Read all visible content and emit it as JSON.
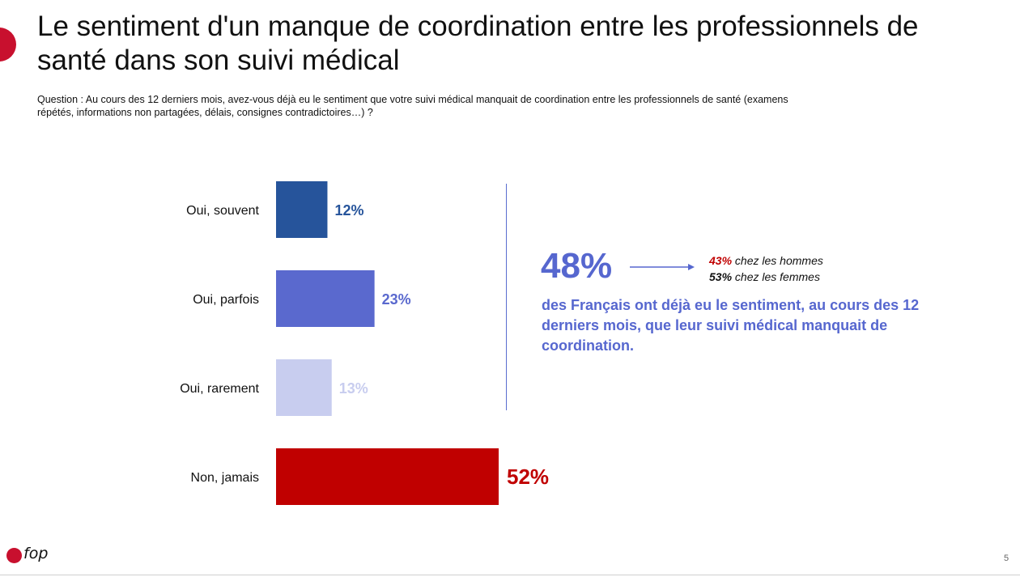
{
  "title": "Le sentiment d'un manque de coordination entre les professionnels de santé dans son suivi médical",
  "question": "Question : Au cours des 12 derniers mois, avez-vous déjà eu le sentiment que votre suivi médical manquait de coordination entre les professionnels de santé (examens répétés, informations non partagées, délais, consignes contradictoires…) ?",
  "chart_data": {
    "type": "bar",
    "orientation": "horizontal",
    "categories": [
      "Oui, souvent",
      "Oui, parfois",
      "Oui, rarement",
      "Non, jamais"
    ],
    "values": [
      12,
      23,
      13,
      52
    ],
    "value_labels": [
      "12%",
      "23%",
      "13%",
      "52%"
    ],
    "colors": [
      "#26549b",
      "#5a69ce",
      "#c8cdef",
      "#c00000"
    ],
    "label_colors": [
      "#26549b",
      "#5a69ce",
      "#c8cdef",
      "#c00000"
    ],
    "xlim": [
      0,
      52
    ],
    "grid": false
  },
  "summary": {
    "big_value": "48%",
    "men_value": "43%",
    "men_text": " chez les hommes",
    "women_value": "53%",
    "women_text": " chez les femmes",
    "statement": "des Français ont déjà eu le sentiment, au cours des 12 derniers mois, que leur suivi médical manquait de coordination."
  },
  "footer": {
    "logo_text": "fop",
    "page_number": "5"
  },
  "colors": {
    "accent": "#5667cf",
    "brand_red": "#c8102e"
  }
}
